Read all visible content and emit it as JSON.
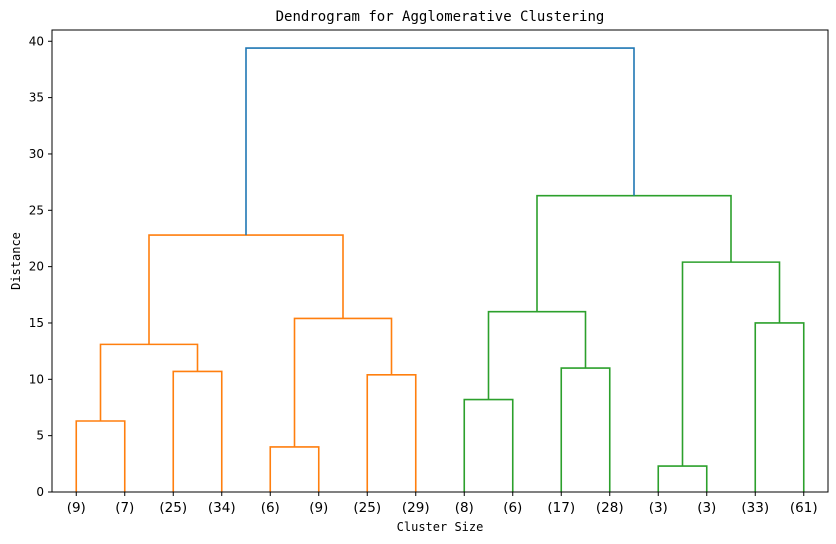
{
  "chart_data": {
    "type": "dendrogram",
    "title": "Dendrogram for Agglomerative Clustering",
    "xlabel": "Cluster Size",
    "ylabel": "Distance",
    "ylim": [
      0,
      41
    ],
    "yticks": [
      0,
      5,
      10,
      15,
      20,
      25,
      30,
      35,
      40
    ],
    "leaves": [
      "(9)",
      "(7)",
      "(25)",
      "(34)",
      "(6)",
      "(9)",
      "(25)",
      "(29)",
      "(8)",
      "(6)",
      "(17)",
      "(28)",
      "(3)",
      "(3)",
      "(33)",
      "(61)"
    ],
    "links": [
      {
        "left": 0,
        "right": 1,
        "height": 6.3,
        "color": "#ff7f0e"
      },
      {
        "left": 2,
        "right": 3,
        "height": 10.7,
        "color": "#ff7f0e"
      },
      {
        "left": 4,
        "right": 5,
        "height": 4.0,
        "color": "#ff7f0e"
      },
      {
        "left": 6,
        "right": 7,
        "height": 10.4,
        "color": "#ff7f0e"
      },
      {
        "left": 8,
        "right": 9,
        "height": 8.2,
        "color": "#2ca02c"
      },
      {
        "left": 10,
        "right": 11,
        "height": 11.0,
        "color": "#2ca02c"
      },
      {
        "left": 12,
        "right": 13,
        "height": 2.3,
        "color": "#2ca02c"
      },
      {
        "left": 14,
        "right": 15,
        "height": 15.0,
        "color": "#2ca02c"
      },
      {
        "left": 16,
        "right": 17,
        "height": 13.1,
        "color": "#ff7f0e"
      },
      {
        "left": 18,
        "right": 19,
        "height": 15.4,
        "color": "#ff7f0e"
      },
      {
        "left": 20,
        "right": 21,
        "height": 16.0,
        "color": "#2ca02c"
      },
      {
        "left": 22,
        "right": 23,
        "height": 20.4,
        "color": "#2ca02c"
      },
      {
        "left": 24,
        "right": 25,
        "height": 22.8,
        "color": "#ff7f0e"
      },
      {
        "left": 26,
        "right": 27,
        "height": 26.3,
        "color": "#2ca02c"
      },
      {
        "left": 28,
        "right": 29,
        "height": 39.4,
        "color": "#1f77b4"
      }
    ],
    "grid": false,
    "legend": "none"
  }
}
